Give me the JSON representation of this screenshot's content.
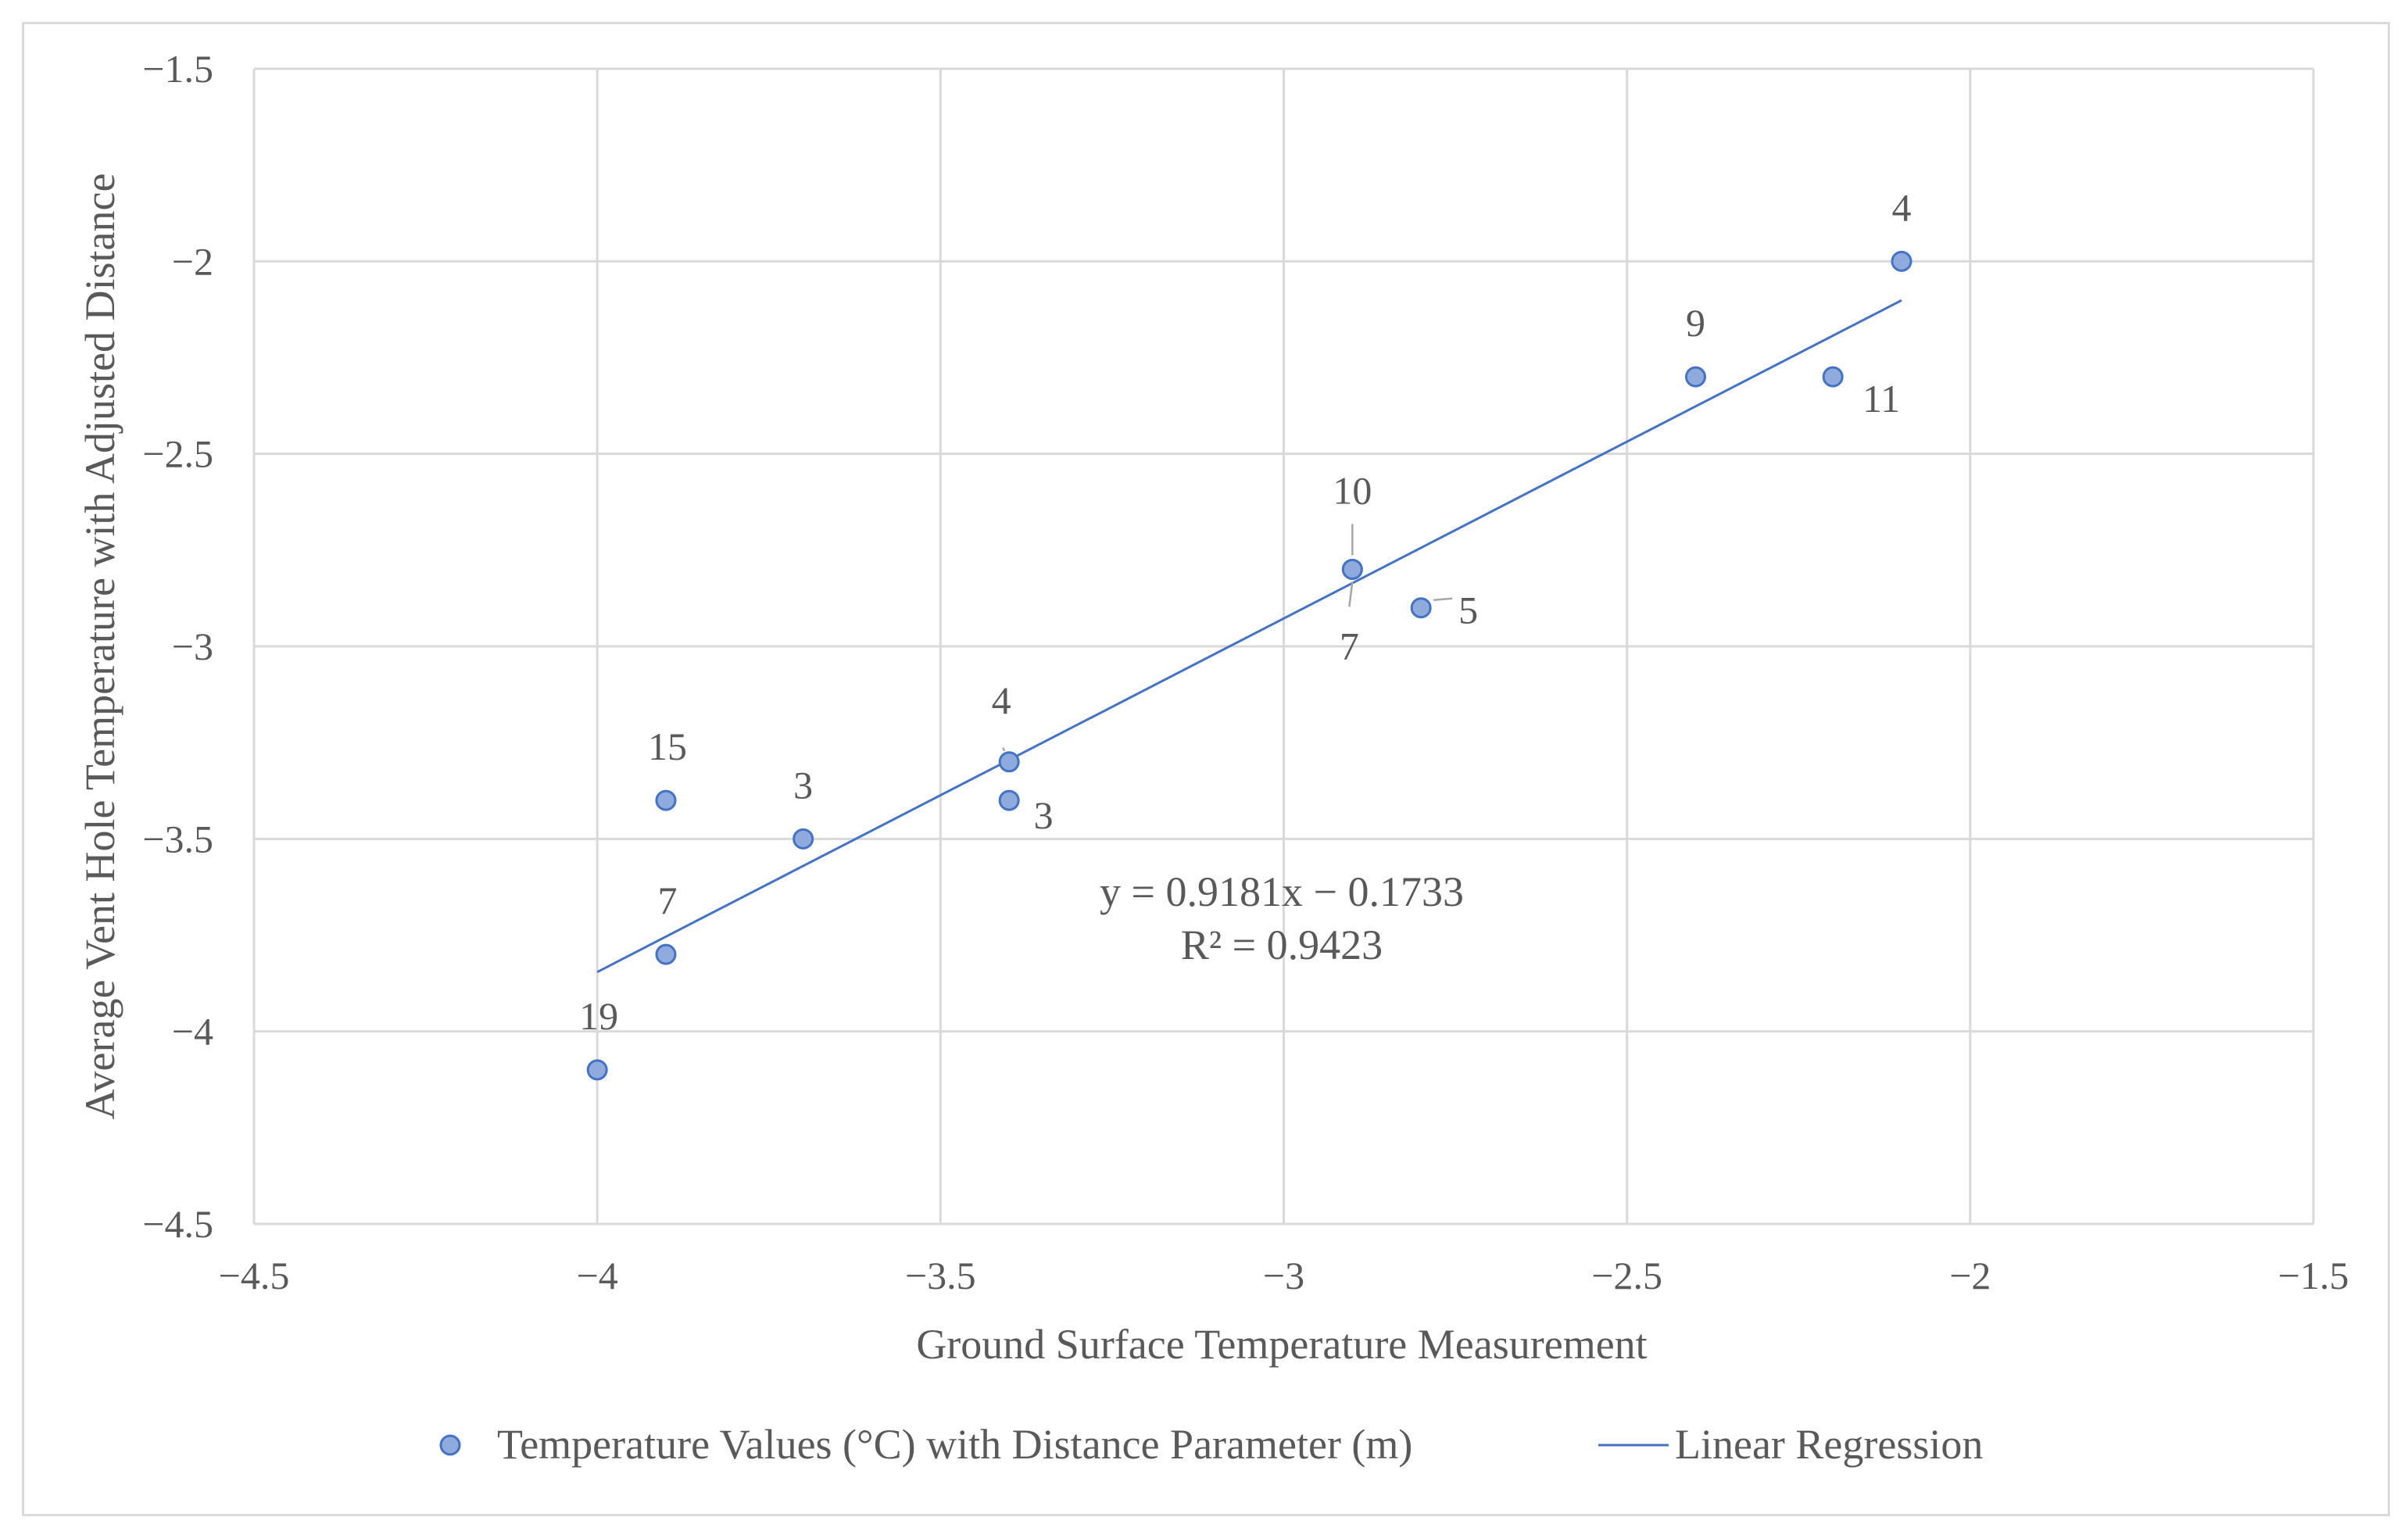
{
  "chart_data": {
    "type": "scatter",
    "title": "",
    "xlabel": "Ground Surface Temperature Measurement",
    "ylabel": "Average Vent Hole Temperature with Adjusted Distance",
    "xlim": [
      -4.5,
      -1.5
    ],
    "ylim": [
      -4.5,
      -1.5
    ],
    "grid": true,
    "x_ticks": [
      "−4.5",
      "−4",
      "−3.5",
      "−3",
      "−2.5",
      "−2",
      "−1.5"
    ],
    "y_ticks": [
      "−1.5",
      "−2",
      "−2.5",
      "−3",
      "−3.5",
      "−4",
      "−4.5"
    ],
    "series": [
      {
        "name": "Temperature Values (°C) with Distance Parameter (m)",
        "type": "scatter",
        "color": "#8faadc",
        "edge_color": "#4472c4",
        "points": [
          {
            "x": -4.0,
            "y": -4.1,
            "label": "19"
          },
          {
            "x": -3.9,
            "y": -3.8,
            "label": "7"
          },
          {
            "x": -3.9,
            "y": -3.4,
            "label": "15"
          },
          {
            "x": -3.7,
            "y": -3.5,
            "label": "3"
          },
          {
            "x": -3.4,
            "y": -3.3,
            "label": "4"
          },
          {
            "x": -3.4,
            "y": -3.4,
            "label": "3"
          },
          {
            "x": -2.9,
            "y": -2.8,
            "label": "10"
          },
          {
            "x": -2.9,
            "y": -2.8,
            "label": "7"
          },
          {
            "x": -2.8,
            "y": -2.9,
            "label": "5"
          },
          {
            "x": -2.4,
            "y": -2.3,
            "label": "9"
          },
          {
            "x": -2.2,
            "y": -2.3,
            "label": "11"
          },
          {
            "x": -2.1,
            "y": -2.0,
            "label": "4"
          }
        ]
      },
      {
        "name": "Linear Regression",
        "type": "line",
        "color": "#4472c4",
        "x": [
          -4.0,
          -2.1
        ],
        "y": [
          -3.8457,
          -2.1013
        ]
      }
    ],
    "annotations": {
      "equation": "y = 0.9181x − 0.1733",
      "r_squared": "R² = 0.9423"
    },
    "legend_position": "bottom"
  }
}
